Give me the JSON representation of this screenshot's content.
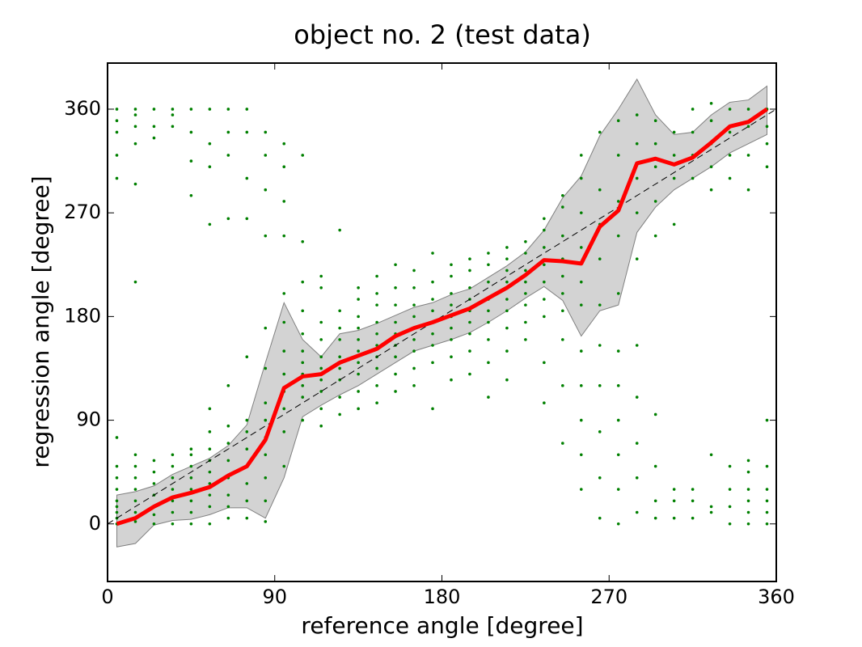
{
  "chart_data": {
    "type": "scatter",
    "title": "object no. 2 (test data)",
    "x_label": "reference angle [degree]",
    "y_label": "regression angle [degree]",
    "xlim": [
      0,
      360
    ],
    "ylim": [
      -50,
      400
    ],
    "xticks": [
      0,
      90,
      180,
      270,
      360
    ],
    "yticks": [
      0,
      90,
      180,
      270,
      360
    ],
    "grid": false,
    "point_color": "#008000",
    "mean_color": "#ff0000",
    "band_color": "#d3d3d3",
    "band_edge_color": "#808080",
    "reference_color": "#000000",
    "x_bins": [
      5,
      15,
      25,
      35,
      45,
      55,
      65,
      75,
      85,
      95,
      105,
      115,
      125,
      135,
      145,
      155,
      165,
      175,
      185,
      195,
      205,
      215,
      225,
      235,
      245,
      255,
      265,
      275,
      285,
      295,
      305,
      315,
      325,
      335,
      345,
      355
    ],
    "mean_line": [
      0,
      5,
      15,
      23,
      27,
      32,
      42,
      50,
      73,
      118,
      128,
      130,
      140,
      146,
      152,
      163,
      170,
      175,
      181,
      187,
      196,
      205,
      216,
      229,
      228,
      226,
      258,
      272,
      313,
      317,
      312,
      318,
      331,
      345,
      349,
      360
    ],
    "band": {
      "lower": [
        -20,
        -17,
        -1,
        3,
        4,
        8,
        14,
        14,
        5,
        40,
        93,
        103,
        112,
        120,
        130,
        140,
        150,
        155,
        160,
        166,
        175,
        185,
        196,
        206,
        194,
        163,
        185,
        190,
        253,
        275,
        290,
        300,
        310,
        322,
        330,
        338
      ],
      "upper": [
        25,
        28,
        33,
        43,
        50,
        57,
        68,
        86,
        140,
        192,
        160,
        145,
        165,
        168,
        174,
        181,
        188,
        192,
        199,
        204,
        214,
        224,
        236,
        255,
        283,
        302,
        337,
        360,
        386,
        355,
        338,
        340,
        355,
        366,
        368,
        380
      ]
    },
    "reference_line": {
      "x": [
        0,
        360
      ],
      "values": [
        0,
        360
      ]
    },
    "scatter": [
      [
        0,
        5,
        10,
        15,
        20,
        30,
        40,
        50,
        75,
        300,
        320,
        340,
        350,
        360
      ],
      [
        2,
        10,
        20,
        30,
        40,
        50,
        60,
        210,
        295,
        330,
        345,
        355,
        360
      ],
      [
        0,
        8,
        15,
        25,
        35,
        45,
        55,
        335,
        345,
        360
      ],
      [
        0,
        10,
        20,
        30,
        40,
        50,
        60,
        345,
        355,
        360
      ],
      [
        0,
        10,
        20,
        30,
        40,
        50,
        60,
        65,
        285,
        315,
        340,
        360
      ],
      [
        0,
        15,
        25,
        35,
        45,
        55,
        65,
        80,
        100,
        260,
        310,
        330,
        360
      ],
      [
        5,
        15,
        25,
        40,
        55,
        70,
        85,
        120,
        265,
        320,
        340,
        360
      ],
      [
        5,
        20,
        35,
        50,
        65,
        80,
        90,
        145,
        265,
        300,
        340,
        360
      ],
      [
        2,
        20,
        40,
        60,
        75,
        90,
        105,
        135,
        170,
        250,
        290,
        320,
        340
      ],
      [
        50,
        80,
        100,
        115,
        130,
        150,
        175,
        200,
        250,
        280,
        310,
        330
      ],
      [
        90,
        110,
        120,
        130,
        140,
        150,
        165,
        185,
        210,
        245,
        320
      ],
      [
        85,
        100,
        115,
        125,
        135,
        145,
        160,
        175,
        205,
        215
      ],
      [
        95,
        110,
        125,
        135,
        145,
        160,
        170,
        185,
        255
      ],
      [
        100,
        115,
        130,
        140,
        150,
        160,
        170,
        180,
        195,
        205
      ],
      [
        105,
        120,
        135,
        145,
        155,
        165,
        175,
        190,
        200,
        215
      ],
      [
        115,
        130,
        145,
        155,
        165,
        175,
        190,
        205,
        225
      ],
      [
        120,
        135,
        150,
        160,
        170,
        180,
        190,
        205,
        220
      ],
      [
        100,
        140,
        155,
        165,
        175,
        185,
        195,
        210,
        235
      ],
      [
        125,
        145,
        160,
        170,
        180,
        190,
        200,
        215,
        225
      ],
      [
        130,
        150,
        165,
        175,
        185,
        195,
        205,
        220,
        230
      ],
      [
        110,
        140,
        160,
        175,
        185,
        195,
        210,
        225,
        235
      ],
      [
        125,
        150,
        170,
        185,
        195,
        210,
        220,
        230,
        240
      ],
      [
        160,
        175,
        190,
        200,
        210,
        220,
        235,
        245
      ],
      [
        105,
        140,
        180,
        195,
        210,
        225,
        240,
        255,
        265
      ],
      [
        70,
        120,
        160,
        185,
        200,
        215,
        230,
        250,
        275,
        285
      ],
      [
        30,
        60,
        90,
        120,
        150,
        190,
        210,
        240,
        270,
        300,
        320
      ],
      [
        5,
        40,
        80,
        120,
        155,
        190,
        230,
        260,
        290,
        340
      ],
      [
        0,
        30,
        60,
        90,
        120,
        150,
        200,
        250,
        280,
        320,
        350
      ],
      [
        10,
        40,
        70,
        110,
        155,
        230,
        270,
        300,
        330,
        355
      ],
      [
        5,
        20,
        50,
        95,
        250,
        280,
        310,
        330,
        350
      ],
      [
        5,
        20,
        30,
        260,
        300,
        320,
        340
      ],
      [
        5,
        20,
        30,
        300,
        320,
        340,
        360
      ],
      [
        10,
        15,
        60,
        290,
        310,
        330,
        350,
        365
      ],
      [
        0,
        15,
        30,
        50,
        300,
        320,
        340,
        360
      ],
      [
        0,
        10,
        20,
        30,
        45,
        55,
        290,
        320,
        345,
        360
      ],
      [
        0,
        10,
        20,
        30,
        50,
        90,
        310,
        330,
        345,
        360
      ]
    ]
  }
}
